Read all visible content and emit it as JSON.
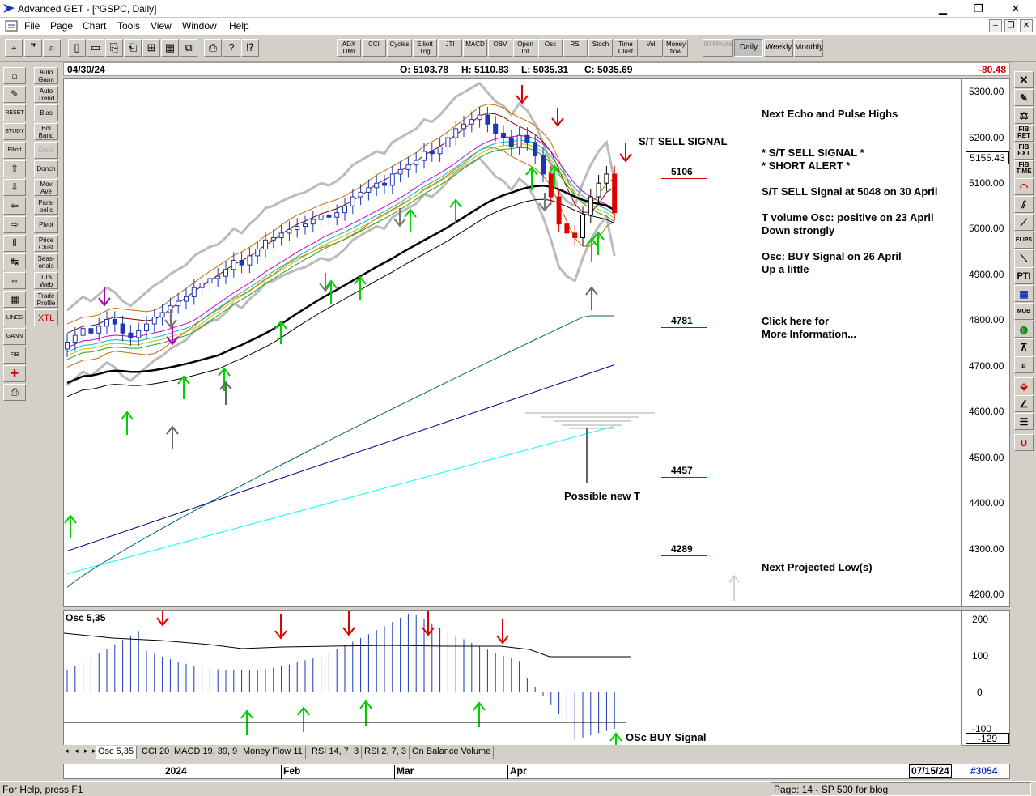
{
  "window": {
    "title": "Advanced GET - [^GSPC, Daily]",
    "minimize": "▁",
    "restore": "❐",
    "close": "✕"
  },
  "menu": [
    "File",
    "Page",
    "Chart",
    "Tools",
    "View",
    "Window",
    "Help"
  ],
  "toolbar": {
    "studies": [
      "ADX DMI",
      "CCI",
      "Cycles",
      "Elliott Trig",
      "JTI",
      "MACD",
      "OBV",
      "Open Int",
      "Osc",
      "RSI",
      "Stoch",
      "Time Clust",
      "Vol",
      "Money flow"
    ],
    "timeframes": [
      "60 Minute",
      "Daily",
      "Weekly",
      "Monthly"
    ],
    "active_timeframe": "Daily"
  },
  "leftbar": {
    "tools": [
      "Auto Gann",
      "Auto Trend",
      "Bias",
      "Bol Band",
      "Delta",
      "Donch",
      "Mov Ave",
      "Para-bolic",
      "Pivot",
      "Price Clust",
      "Seas-onals",
      "TJ's Web",
      "Trade Profile",
      "XTL"
    ]
  },
  "rightbar": {
    "tools": [
      "FIB RET",
      "FIB EXT",
      "FIB TIME",
      "ELIPS",
      "PTI",
      "MOB"
    ]
  },
  "info": {
    "date": "04/30/24",
    "open": "O: 5103.78",
    "high": "H: 5110.83",
    "low": "L: 5035.31",
    "close": "C: 5035.69",
    "change": "-80.48"
  },
  "price_axis": {
    "ticks": [
      "5300.00",
      "5200.00",
      "5100.00",
      "5000.00",
      "4900.00",
      "4800.00",
      "4700.00",
      "4600.00",
      "4500.00",
      "4400.00",
      "4300.00",
      "4200.00"
    ],
    "current": "5155.43"
  },
  "annotations": {
    "st_sell": "S/T SELL SIGNAL",
    "possible_new_t": "Possible new T",
    "levels": [
      "5106",
      "4781",
      "4457",
      "4289"
    ]
  },
  "notes": {
    "echo": "Next Echo and Pulse Highs",
    "sell1": "* S/T SELL SIGNAL *",
    "alert": "* SHORT ALERT *",
    "sell2": "S/T SELL Signal at 5048 on 30 April",
    "tvol1": "T volume Osc: positive on 23 April",
    "tvol2": "Down strongly",
    "osc1": "Osc: BUY Signal on 26 April",
    "osc2": "Up a little",
    "click1": "Click here for",
    "click2": "More Information...",
    "low": "Next Projected Low(s)"
  },
  "oscillator": {
    "label": "Osc 5,35",
    "signal": "OSc BUY Signal",
    "ticks": [
      "200",
      "100",
      "0",
      "-100"
    ],
    "current": "-129"
  },
  "tabs": [
    "Osc 5,35",
    "CCI 20",
    "MACD 19, 39, 9",
    "Money Flow 11",
    "RSI 14, 7, 3",
    "RSI 2, 7, 3",
    "On Balance Volume"
  ],
  "datebar": {
    "months": [
      "2024",
      "Feb",
      "Mar",
      "Apr"
    ],
    "end_date": "07/15/24",
    "count": "#3054"
  },
  "status": {
    "help": "For Help, press F1",
    "page": "Page: 14 - SP 500 for blog"
  },
  "chart_data": {
    "type": "candlestick",
    "ylim": [
      4200,
      5320
    ],
    "closes": [
      4750,
      4765,
      4780,
      4770,
      4785,
      4800,
      4790,
      4770,
      4760,
      4775,
      4790,
      4805,
      4815,
      4830,
      4840,
      4850,
      4870,
      4880,
      4890,
      4895,
      4910,
      4930,
      4920,
      4940,
      4955,
      4975,
      4980,
      4990,
      4998,
      5005,
      5010,
      5020,
      5030,
      5025,
      5035,
      5050,
      5070,
      5080,
      5090,
      5100,
      5095,
      5120,
      5130,
      5140,
      5150,
      5170,
      5165,
      5180,
      5200,
      5220,
      5230,
      5240,
      5250,
      5230,
      5210,
      5200,
      5180,
      5205,
      5190,
      5160,
      5120,
      5070,
      5010,
      4990,
      4980,
      5030,
      5070,
      5100,
      5120,
      5035
    ]
  }
}
